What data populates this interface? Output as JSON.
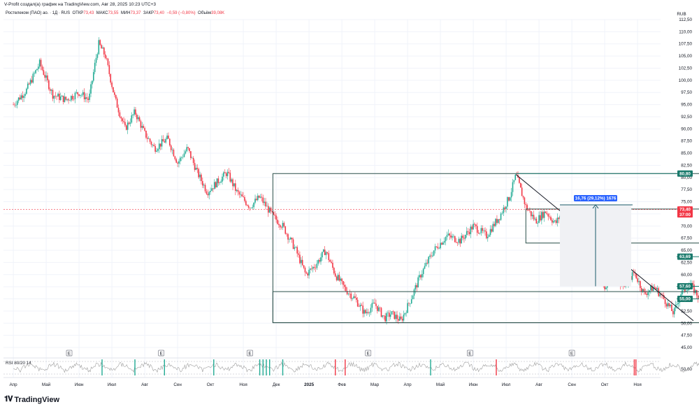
{
  "header": {
    "title": "V-Profit создал(а) график на TradingView.com, Авг 28, 2025 10:23 UTC+3"
  },
  "legend": {
    "symbol": "Ростелеком (ПАО) ао. · 1Д · RUS",
    "open_label": "ОТКР",
    "open": "73,43",
    "high_label": "МАКС",
    "high": "73,55",
    "low_label": "МИН",
    "low": "73,37",
    "close_label": "ЗАКР",
    "close": "73,40",
    "change": "−0,59 (−0,80%)",
    "volume_label": "Объём",
    "volume": "39,08K"
  },
  "brand": {
    "name": "TradingView",
    "logo_icon": "tradingview-logo-icon"
  },
  "colors": {
    "grid": "#f0f3fa",
    "candle_up": "#22ab94",
    "candle_down": "#f23645",
    "box": "#2b4f4a",
    "label_green": "#1a7a6c",
    "label_red": "#f23645",
    "label_blue": "#2962ff",
    "rsi": "#9e9e9e"
  },
  "chart_data": {
    "type": "candlestick",
    "currency": "RUB",
    "y_ticks": [
      "112,50",
      "110,00",
      "107,50",
      "105,00",
      "102,50",
      "100,00",
      "97,50",
      "95,00",
      "92,50",
      "90,00",
      "87,50",
      "85,00",
      "82,50",
      "80,00",
      "77,50",
      "75,00",
      "72,50",
      "70,00",
      "67,50",
      "65,00",
      "62,50",
      "60,00",
      "57,50",
      "55,00",
      "52,50",
      "50,00",
      "47,50",
      "45,00"
    ],
    "ylim": [
      45,
      112.5
    ],
    "x_ticks": [
      "Апр",
      "Май",
      "Июн",
      "Июл",
      "Авг",
      "Сен",
      "Окт",
      "Ноя",
      "Дек",
      "2025",
      "Фев",
      "Мар",
      "Апр",
      "Май",
      "Июн",
      "Июл",
      "Авг",
      "Сен",
      "Окт",
      "Ноя"
    ],
    "price_path": [
      [
        0,
        95
      ],
      [
        0.4,
        98
      ],
      [
        0.8,
        103.5
      ],
      [
        1.2,
        97
      ],
      [
        1.6,
        96
      ],
      [
        2.0,
        97.5
      ],
      [
        2.3,
        96
      ],
      [
        2.5,
        104
      ],
      [
        2.6,
        107.5
      ],
      [
        2.8,
        105
      ],
      [
        3.1,
        96
      ],
      [
        3.4,
        90
      ],
      [
        3.7,
        93.5
      ],
      [
        4.0,
        89
      ],
      [
        4.3,
        86
      ],
      [
        4.7,
        88
      ],
      [
        5.0,
        83
      ],
      [
        5.3,
        86
      ],
      [
        5.6,
        81
      ],
      [
        5.9,
        77
      ],
      [
        6.2,
        79
      ],
      [
        6.5,
        81
      ],
      [
        6.8,
        77
      ],
      [
        7.2,
        74
      ],
      [
        7.5,
        76
      ],
      [
        7.9,
        72
      ],
      [
        8.2,
        70
      ],
      [
        8.6,
        65
      ],
      [
        8.9,
        60
      ],
      [
        9.2,
        62
      ],
      [
        9.5,
        65
      ],
      [
        9.8,
        60
      ],
      [
        10.1,
        57
      ],
      [
        10.4,
        55
      ],
      [
        10.7,
        52
      ],
      [
        11.0,
        54
      ],
      [
        11.3,
        51
      ],
      [
        11.5,
        52
      ],
      [
        11.8,
        50.5
      ],
      [
        12.1,
        55
      ],
      [
        12.4,
        60
      ],
      [
        12.8,
        65
      ],
      [
        13.2,
        68
      ],
      [
        13.6,
        67
      ],
      [
        14.0,
        70
      ],
      [
        14.4,
        68
      ],
      [
        14.8,
        72
      ],
      [
        15.1,
        76
      ],
      [
        15.3,
        80.5
      ],
      [
        15.6,
        74
      ],
      [
        15.9,
        71
      ],
      [
        16.2,
        73
      ],
      [
        16.5,
        70.5
      ],
      [
        16.8,
        74
      ],
      [
        17.1,
        67
      ],
      [
        17.4,
        63
      ],
      [
        17.7,
        61
      ],
      [
        18.0,
        57
      ],
      [
        18.3,
        60
      ],
      [
        18.6,
        57.5
      ],
      [
        18.9,
        60.5
      ],
      [
        19.2,
        56
      ],
      [
        19.5,
        57.5
      ],
      [
        19.8,
        55
      ],
      [
        20.1,
        52
      ],
      [
        20.3,
        56
      ],
      [
        20.6,
        58
      ],
      [
        20.9,
        55
      ],
      [
        21.2,
        54.5
      ],
      [
        21.5,
        53
      ],
      [
        21.8,
        56
      ],
      [
        22.1,
        57.5
      ],
      [
        22.4,
        59
      ],
      [
        22.7,
        61
      ],
      [
        23.0,
        60
      ],
      [
        23.3,
        62
      ],
      [
        23.6,
        65.5
      ],
      [
        23.9,
        64
      ],
      [
        24.2,
        66.5
      ],
      [
        24.5,
        68
      ],
      [
        24.7,
        64
      ],
      [
        24.9,
        66
      ],
      [
        25.1,
        74.5
      ],
      [
        25.3,
        71
      ],
      [
        25.5,
        72
      ],
      [
        25.7,
        70
      ],
      [
        25.9,
        73
      ],
      [
        26.1,
        73.4
      ]
    ],
    "rsi": {
      "label": "RSI 80/20 14",
      "level": "50,00",
      "upper": 80,
      "lower": 20
    },
    "earnings_markers": [
      "E",
      "E",
      "E",
      "E",
      "E",
      "E"
    ],
    "annotations": {
      "measure_label": "16,76 (29,12%) 1676",
      "price_tags": [
        {
          "value": "80,80",
          "kind": "green"
        },
        {
          "value": "73,40",
          "kind": "red",
          "sub": "37:00"
        },
        {
          "value": "63,69",
          "kind": "green"
        },
        {
          "value": "57,60",
          "kind": "green"
        },
        {
          "value": "55,00",
          "kind": "green"
        }
      ]
    }
  }
}
